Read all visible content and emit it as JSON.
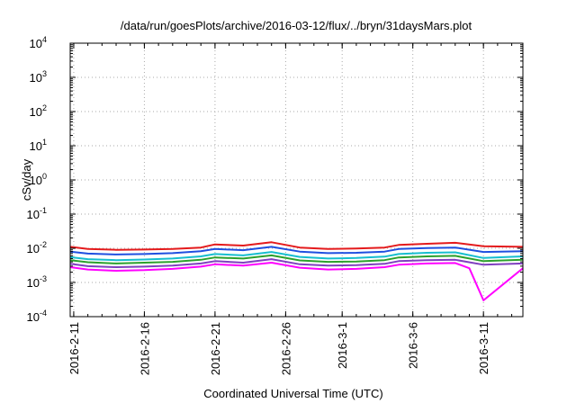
{
  "chart_data": {
    "type": "line",
    "title": "/data/run/goesPlots/archive/2016-03-12/flux/../bryn/31daysMars.plot",
    "xlabel": "Coordinated Universal Time (UTC)",
    "ylabel": "cSv/day",
    "y_scale": "log",
    "ylim": [
      0.0001,
      10000
    ],
    "y_ticks": [
      {
        "value": 0.0001,
        "base": "10",
        "exp": "-4"
      },
      {
        "value": 0.001,
        "base": "10",
        "exp": "-3"
      },
      {
        "value": 0.01,
        "base": "10",
        "exp": "-2"
      },
      {
        "value": 0.1,
        "base": "10",
        "exp": "-1"
      },
      {
        "value": 1,
        "base": "10",
        "exp": "0"
      },
      {
        "value": 10,
        "base": "10",
        "exp": "1"
      },
      {
        "value": 100,
        "base": "10",
        "exp": "2"
      },
      {
        "value": 1000,
        "base": "10",
        "exp": "3"
      },
      {
        "value": 10000,
        "base": "10",
        "exp": "4"
      }
    ],
    "xlim": [
      "2016-02-10T18:00",
      "2016-03-13T19:00"
    ],
    "x_ticks": [
      "2016-2-11",
      "2016-2-16",
      "2016-2-21",
      "2016-2-26",
      "2016-3-1",
      "2016-3-6",
      "2016-3-11"
    ],
    "grid": true,
    "legend": "none",
    "series": [
      {
        "color": "#e41a1c",
        "x": [
          "2016-02-10T18:00",
          "2016-02-12",
          "2016-02-14",
          "2016-02-16",
          "2016-02-18",
          "2016-02-20",
          "2016-02-21",
          "2016-02-23",
          "2016-02-25",
          "2016-02-27",
          "2016-02-29",
          "2016-03-02",
          "2016-03-04",
          "2016-03-05",
          "2016-03-07",
          "2016-03-09",
          "2016-03-11",
          "2016-03-13T19:00"
        ],
        "values": [
          0.011,
          0.0095,
          0.009,
          0.0092,
          0.0095,
          0.0105,
          0.013,
          0.012,
          0.015,
          0.0105,
          0.0095,
          0.0098,
          0.0105,
          0.0125,
          0.0135,
          0.0145,
          0.0115,
          0.011
        ]
      },
      {
        "color": "#1f4fe0",
        "x": [
          "2016-02-10T18:00",
          "2016-02-12",
          "2016-02-14",
          "2016-02-16",
          "2016-02-18",
          "2016-02-20",
          "2016-02-21",
          "2016-02-23",
          "2016-02-25",
          "2016-02-27",
          "2016-02-29",
          "2016-03-02",
          "2016-03-04",
          "2016-03-05",
          "2016-03-07",
          "2016-03-09",
          "2016-03-11",
          "2016-03-13T19:00"
        ],
        "values": [
          0.008,
          0.007,
          0.0066,
          0.0068,
          0.0072,
          0.0082,
          0.0095,
          0.0088,
          0.011,
          0.008,
          0.0072,
          0.0074,
          0.008,
          0.0095,
          0.0102,
          0.0105,
          0.0078,
          0.0082
        ]
      },
      {
        "color": "#17becf",
        "x": [
          "2016-02-10T18:00",
          "2016-02-12",
          "2016-02-14",
          "2016-02-16",
          "2016-02-18",
          "2016-02-20",
          "2016-02-21",
          "2016-02-23",
          "2016-02-25",
          "2016-02-27",
          "2016-02-29",
          "2016-03-02",
          "2016-03-04",
          "2016-03-05",
          "2016-03-07",
          "2016-03-09",
          "2016-03-11",
          "2016-03-13T19:00"
        ],
        "values": [
          0.0055,
          0.0048,
          0.0045,
          0.0047,
          0.005,
          0.0058,
          0.0068,
          0.0062,
          0.0078,
          0.0056,
          0.005,
          0.0052,
          0.0057,
          0.0068,
          0.0074,
          0.0076,
          0.0052,
          0.0058
        ]
      },
      {
        "color": "#2ca02c",
        "x": [
          "2016-02-10T18:00",
          "2016-02-12",
          "2016-02-14",
          "2016-02-16",
          "2016-02-18",
          "2016-02-20",
          "2016-02-21",
          "2016-02-23",
          "2016-02-25",
          "2016-02-27",
          "2016-02-29",
          "2016-03-02",
          "2016-03-04",
          "2016-03-05",
          "2016-03-07",
          "2016-03-09",
          "2016-03-11",
          "2016-03-13T19:00"
        ],
        "values": [
          0.0045,
          0.0039,
          0.0036,
          0.0038,
          0.004,
          0.0046,
          0.0054,
          0.005,
          0.0062,
          0.0044,
          0.004,
          0.0041,
          0.0045,
          0.0054,
          0.0058,
          0.006,
          0.0042,
          0.0046
        ]
      },
      {
        "color": "#7f3fbf",
        "x": [
          "2016-02-10T18:00",
          "2016-02-12",
          "2016-02-14",
          "2016-02-16",
          "2016-02-18",
          "2016-02-20",
          "2016-02-21",
          "2016-02-23",
          "2016-02-25",
          "2016-02-27",
          "2016-02-29",
          "2016-03-02",
          "2016-03-04",
          "2016-03-05",
          "2016-03-07",
          "2016-03-09",
          "2016-03-11",
          "2016-03-13T19:00"
        ],
        "values": [
          0.0035,
          0.003,
          0.0028,
          0.0029,
          0.0031,
          0.0036,
          0.0042,
          0.0038,
          0.0048,
          0.0034,
          0.0031,
          0.0032,
          0.0035,
          0.0042,
          0.0045,
          0.0046,
          0.0033,
          0.0036
        ]
      },
      {
        "color": "#ff00ff",
        "x": [
          "2016-02-10T18:00",
          "2016-02-12",
          "2016-02-14",
          "2016-02-16",
          "2016-02-18",
          "2016-02-20",
          "2016-02-21",
          "2016-02-23",
          "2016-02-25",
          "2016-02-27",
          "2016-02-29",
          "2016-03-02",
          "2016-03-04",
          "2016-03-05",
          "2016-03-07",
          "2016-03-09",
          "2016-03-10",
          "2016-03-11",
          "2016-03-13T19:00"
        ],
        "values": [
          0.0028,
          0.0024,
          0.0022,
          0.0023,
          0.0025,
          0.0029,
          0.0034,
          0.0031,
          0.0038,
          0.0027,
          0.0024,
          0.0025,
          0.0028,
          0.0033,
          0.0036,
          0.0037,
          0.0026,
          0.0003,
          0.0026
        ]
      }
    ]
  }
}
